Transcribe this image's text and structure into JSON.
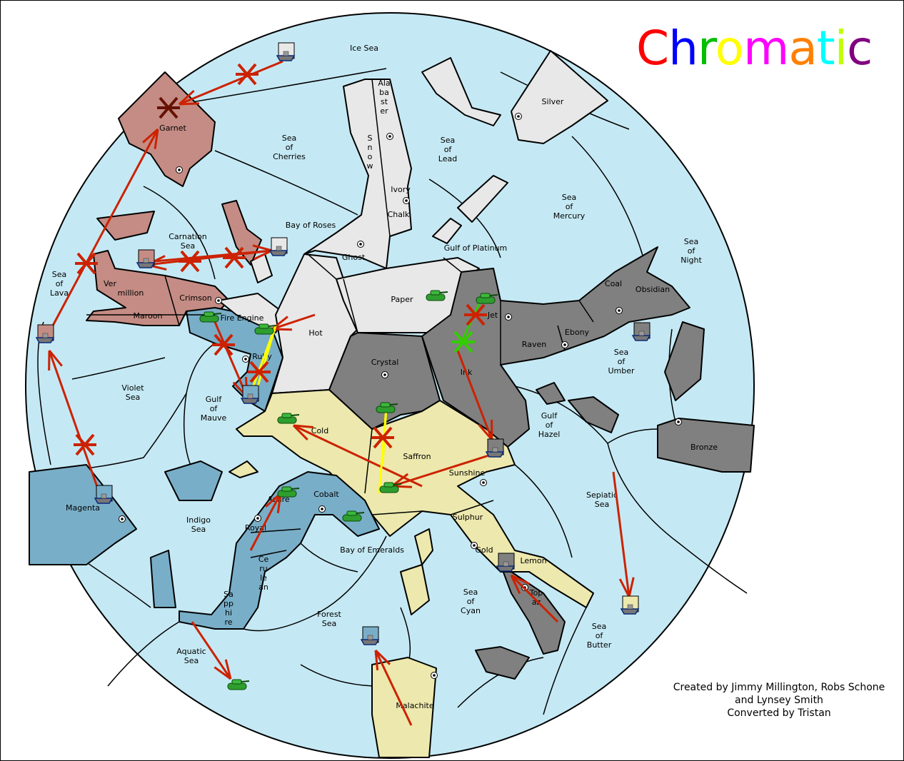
{
  "title": {
    "text": "Chromatic",
    "letters": [
      {
        "ch": "C",
        "color": "#ff0000"
      },
      {
        "ch": "h",
        "color": "#0000ff"
      },
      {
        "ch": "r",
        "color": "#00c000"
      },
      {
        "ch": "o",
        "color": "#ffff00"
      },
      {
        "ch": "m",
        "color": "#ff00ff"
      },
      {
        "ch": "a",
        "color": "#ff8000"
      },
      {
        "ch": "t",
        "color": "#00ffff"
      },
      {
        "ch": "i",
        "color": "#c0ff00"
      },
      {
        "ch": "c",
        "color": "#800080"
      }
    ]
  },
  "credits": {
    "line1": "Created by Jimmy Millington, Robs Schone",
    "line2": "and Lynsey Smith",
    "line3": "Converted by Tristan"
  },
  "colors": {
    "sea": "#c5e9f4",
    "red_power": "#c48c84",
    "blue_power": "#79aec8",
    "white_power": "#e8e8e8",
    "black_power": "#808080",
    "yellow_power": "#ede8ad",
    "order": "#cc2200",
    "support": "#ffff00",
    "convoy_support": "#33cc00"
  },
  "labels": [
    "Ice Sea",
    "Ala\nba\nst\ner",
    "Silver",
    "S\nn\no\nw",
    "Sea\nof\nCherries",
    "Sea\nof\nLead",
    "Garnet",
    "Ivory",
    "Chalk",
    "Sea\nof\nMercury",
    "Carnation\nSea",
    "Bay of Roses",
    "Sea\nof\nNight",
    "Ghost",
    "Gulf of Platinum",
    "Sea\nof\nLava",
    "Ver",
    "million",
    "Crimson",
    "Paper",
    "Coal",
    "Obsidian",
    "Maroon",
    "Fire Engine",
    "Jet",
    "Hot",
    "Ebony",
    "Raven",
    "Sea\nof\nUmber",
    "Ruby",
    "Crystal",
    "Ink",
    "Violet\nSea",
    "Gulf\nof\nMauve",
    "Gulf\nof\nHazel",
    "Cold",
    "Saffron",
    "Bronze",
    "Sunshine",
    "Sepiatic\nSea",
    "Cobalt",
    "Azure",
    "Magenta",
    "Indigo\nSea",
    "Royal",
    "Sulphur",
    "Bay of Emeralds",
    "Gold",
    "Lemon",
    "Ce\nru\nle\nan",
    "Top\naz",
    "Sea\nof\nCyan",
    "Sa\npp\nhi\nre",
    "Forest\nSea",
    "Sea\nof\nButter",
    "Aquatic\nSea",
    "Malachite"
  ],
  "units": [
    {
      "type": "fleet",
      "power": "white"
    },
    {
      "type": "fleet",
      "power": "red"
    },
    {
      "type": "fleet",
      "power": "red"
    },
    {
      "type": "fleet",
      "power": "white"
    },
    {
      "type": "fleet",
      "power": "blue"
    },
    {
      "type": "fleet",
      "power": "black"
    },
    {
      "type": "fleet",
      "power": "blue"
    },
    {
      "type": "fleet",
      "power": "black"
    },
    {
      "type": "fleet",
      "power": "black"
    },
    {
      "type": "fleet",
      "power": "yellow"
    },
    {
      "type": "fleet",
      "power": "blue"
    },
    {
      "type": "army",
      "power": "white"
    },
    {
      "type": "army",
      "power": "black"
    },
    {
      "type": "army",
      "power": "blue"
    },
    {
      "type": "army",
      "power": "white"
    },
    {
      "type": "army",
      "power": "black"
    },
    {
      "type": "army",
      "power": "yellow"
    },
    {
      "type": "army",
      "power": "yellow"
    },
    {
      "type": "army",
      "power": "blue"
    },
    {
      "type": "army",
      "power": "blue"
    },
    {
      "type": "army",
      "power": "black"
    }
  ]
}
